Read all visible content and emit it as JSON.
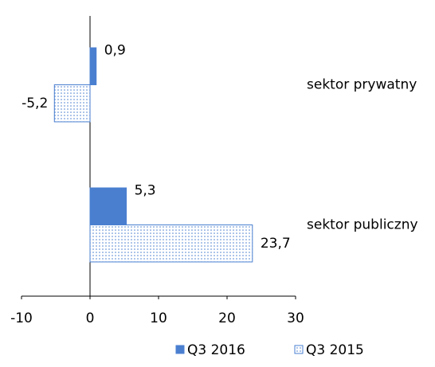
{
  "chart_data": {
    "type": "hbar",
    "categories": [
      "sektor prywatny",
      "sektor publiczny"
    ],
    "series": [
      {
        "name": "Q3 2016",
        "color": "#4a7fd0",
        "pattern": "solid",
        "values": [
          0.9,
          5.3
        ],
        "value_labels": [
          "0,9",
          "5,3"
        ]
      },
      {
        "name": "Q3 2015",
        "color": "#4a7fd0",
        "pattern": "dots",
        "values": [
          -5.2,
          23.7
        ],
        "value_labels": [
          "-5,2",
          "23,7"
        ]
      }
    ],
    "xlim": [
      -10,
      30
    ],
    "xticks": [
      -10,
      0,
      10,
      20,
      30
    ],
    "grid": false,
    "legend": "bottom"
  }
}
